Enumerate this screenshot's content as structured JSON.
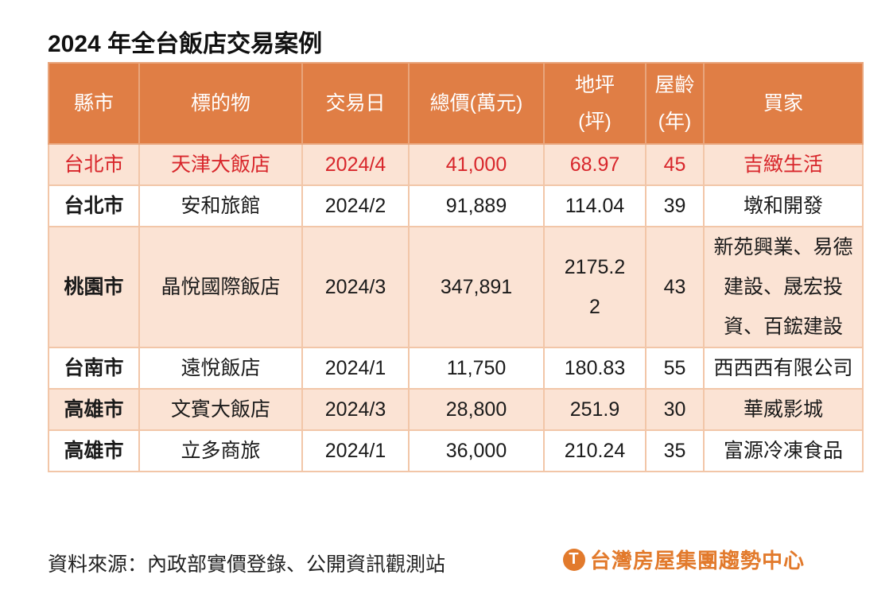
{
  "title": "2024 年全台飯店交易案例",
  "headers": {
    "city": "縣市",
    "property": "標的物",
    "date": "交易日",
    "price": "總價(萬元)",
    "land_1": "地坪",
    "land_2": "(坪)",
    "age_1": "屋齡",
    "age_2": "(年)",
    "buyer": "買家"
  },
  "rows": [
    {
      "city": "台北市",
      "property": "天津大飯店",
      "date": "2024/4",
      "price": "41,000",
      "land": "68.97",
      "age": "45",
      "buyer": "吉緻生活"
    },
    {
      "city": "台北市",
      "property": "安和旅館",
      "date": "2024/2",
      "price": "91,889",
      "land": "114.04",
      "age": "39",
      "buyer": "墩和開發"
    },
    {
      "city": "桃園市",
      "property": "晶悅國際飯店",
      "date": "2024/3",
      "price": "347,891",
      "land": "2175.22",
      "age": "43",
      "buyer": "新苑興業、易德建設、晟宏投資、百鋐建設"
    },
    {
      "city": "台南市",
      "property": "遠悅飯店",
      "date": "2024/1",
      "price": "11,750",
      "land": "180.83",
      "age": "55",
      "buyer": "西西西有限公司"
    },
    {
      "city": "高雄市",
      "property": "文賓大飯店",
      "date": "2024/3",
      "price": "28,800",
      "land": "251.9",
      "age": "30",
      "buyer": "華威影城"
    },
    {
      "city": "高雄市",
      "property": "立多商旅",
      "date": "2024/1",
      "price": "36,000",
      "land": "210.24",
      "age": "35",
      "buyer": "富源冷凍食品"
    }
  ],
  "source": "資料來源：內政部實價登錄、公開資訊觀測站",
  "logo_text": "台灣房屋集團趨勢中心",
  "colors": {
    "header": "#e07e45",
    "highlight_text": "#d8262b",
    "band": "#fbe3d4"
  }
}
